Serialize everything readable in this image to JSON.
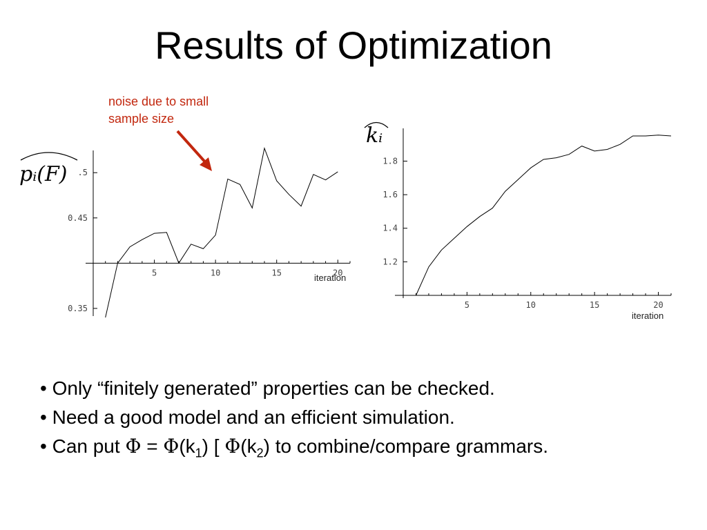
{
  "slide": {
    "title": "Results of Optimization"
  },
  "annotation": {
    "line1": "noise due to small",
    "line2": "sample size"
  },
  "bullets": [
    {
      "prefix": "• ",
      "text": "Only “finitely generated” properties can be checked."
    },
    {
      "prefix": "• ",
      "text": "Need a good model and an efficient simulation."
    },
    {
      "prefix": "• ",
      "before": "Can put ",
      "phi": "Φ",
      "eq": " = ",
      "open1": "(k",
      "sub1": "1",
      "mid": ") [ ",
      "open2": "(k",
      "sub2": "2",
      "after": ") to combine/compare grammars."
    }
  ],
  "colors": {
    "annotation": "#c2270e",
    "arrow": "#c2270e",
    "line": "#000000"
  },
  "chart_data": [
    {
      "type": "line",
      "ylabel": "p_i(F) (hat)",
      "ylabel_display": "pᵢ(F)",
      "xlabel": "iteration",
      "xlim": [
        0,
        21
      ],
      "ylim": [
        0.34,
        0.52
      ],
      "x_axis_y": 0.4,
      "xticks": [
        5,
        10,
        15,
        20
      ],
      "yticks": [
        0.35,
        0.45,
        0.5
      ],
      "ytick_labels": [
        "0.35",
        "0.45",
        ".5"
      ],
      "series": [
        {
          "x": [
            1,
            2,
            3,
            4,
            5,
            6,
            7,
            8,
            9,
            10,
            11,
            12,
            13,
            14,
            15,
            16,
            17,
            18,
            19,
            20
          ],
          "y": [
            0.34,
            0.4,
            0.418,
            0.426,
            0.433,
            0.434,
            0.4,
            0.421,
            0.416,
            0.431,
            0.493,
            0.487,
            0.461,
            0.527,
            0.491,
            0.476,
            0.463,
            0.498,
            0.492,
            0.501
          ]
        }
      ]
    },
    {
      "type": "line",
      "ylabel": "k_i (hat)",
      "ylabel_display": "kᵢ",
      "xlabel": "iteration",
      "xlim": [
        0,
        21
      ],
      "ylim": [
        1.0,
        1.95
      ],
      "x_axis_y": 1.0,
      "xticks": [
        5,
        10,
        15,
        20
      ],
      "yticks": [
        1.2,
        1.4,
        1.6,
        1.8
      ],
      "ytick_labels": [
        "1.2",
        "1.4",
        "1.6",
        "1.8"
      ],
      "series": [
        {
          "x": [
            1,
            2,
            3,
            4,
            5,
            6,
            7,
            8,
            9,
            10,
            11,
            12,
            13,
            14,
            15,
            16,
            17,
            18,
            19,
            20,
            21
          ],
          "y": [
            1.0,
            1.17,
            1.27,
            1.34,
            1.41,
            1.47,
            1.52,
            1.62,
            1.69,
            1.76,
            1.81,
            1.82,
            1.84,
            1.89,
            1.86,
            1.87,
            1.9,
            1.95,
            1.95,
            1.955,
            1.95
          ]
        }
      ]
    }
  ]
}
